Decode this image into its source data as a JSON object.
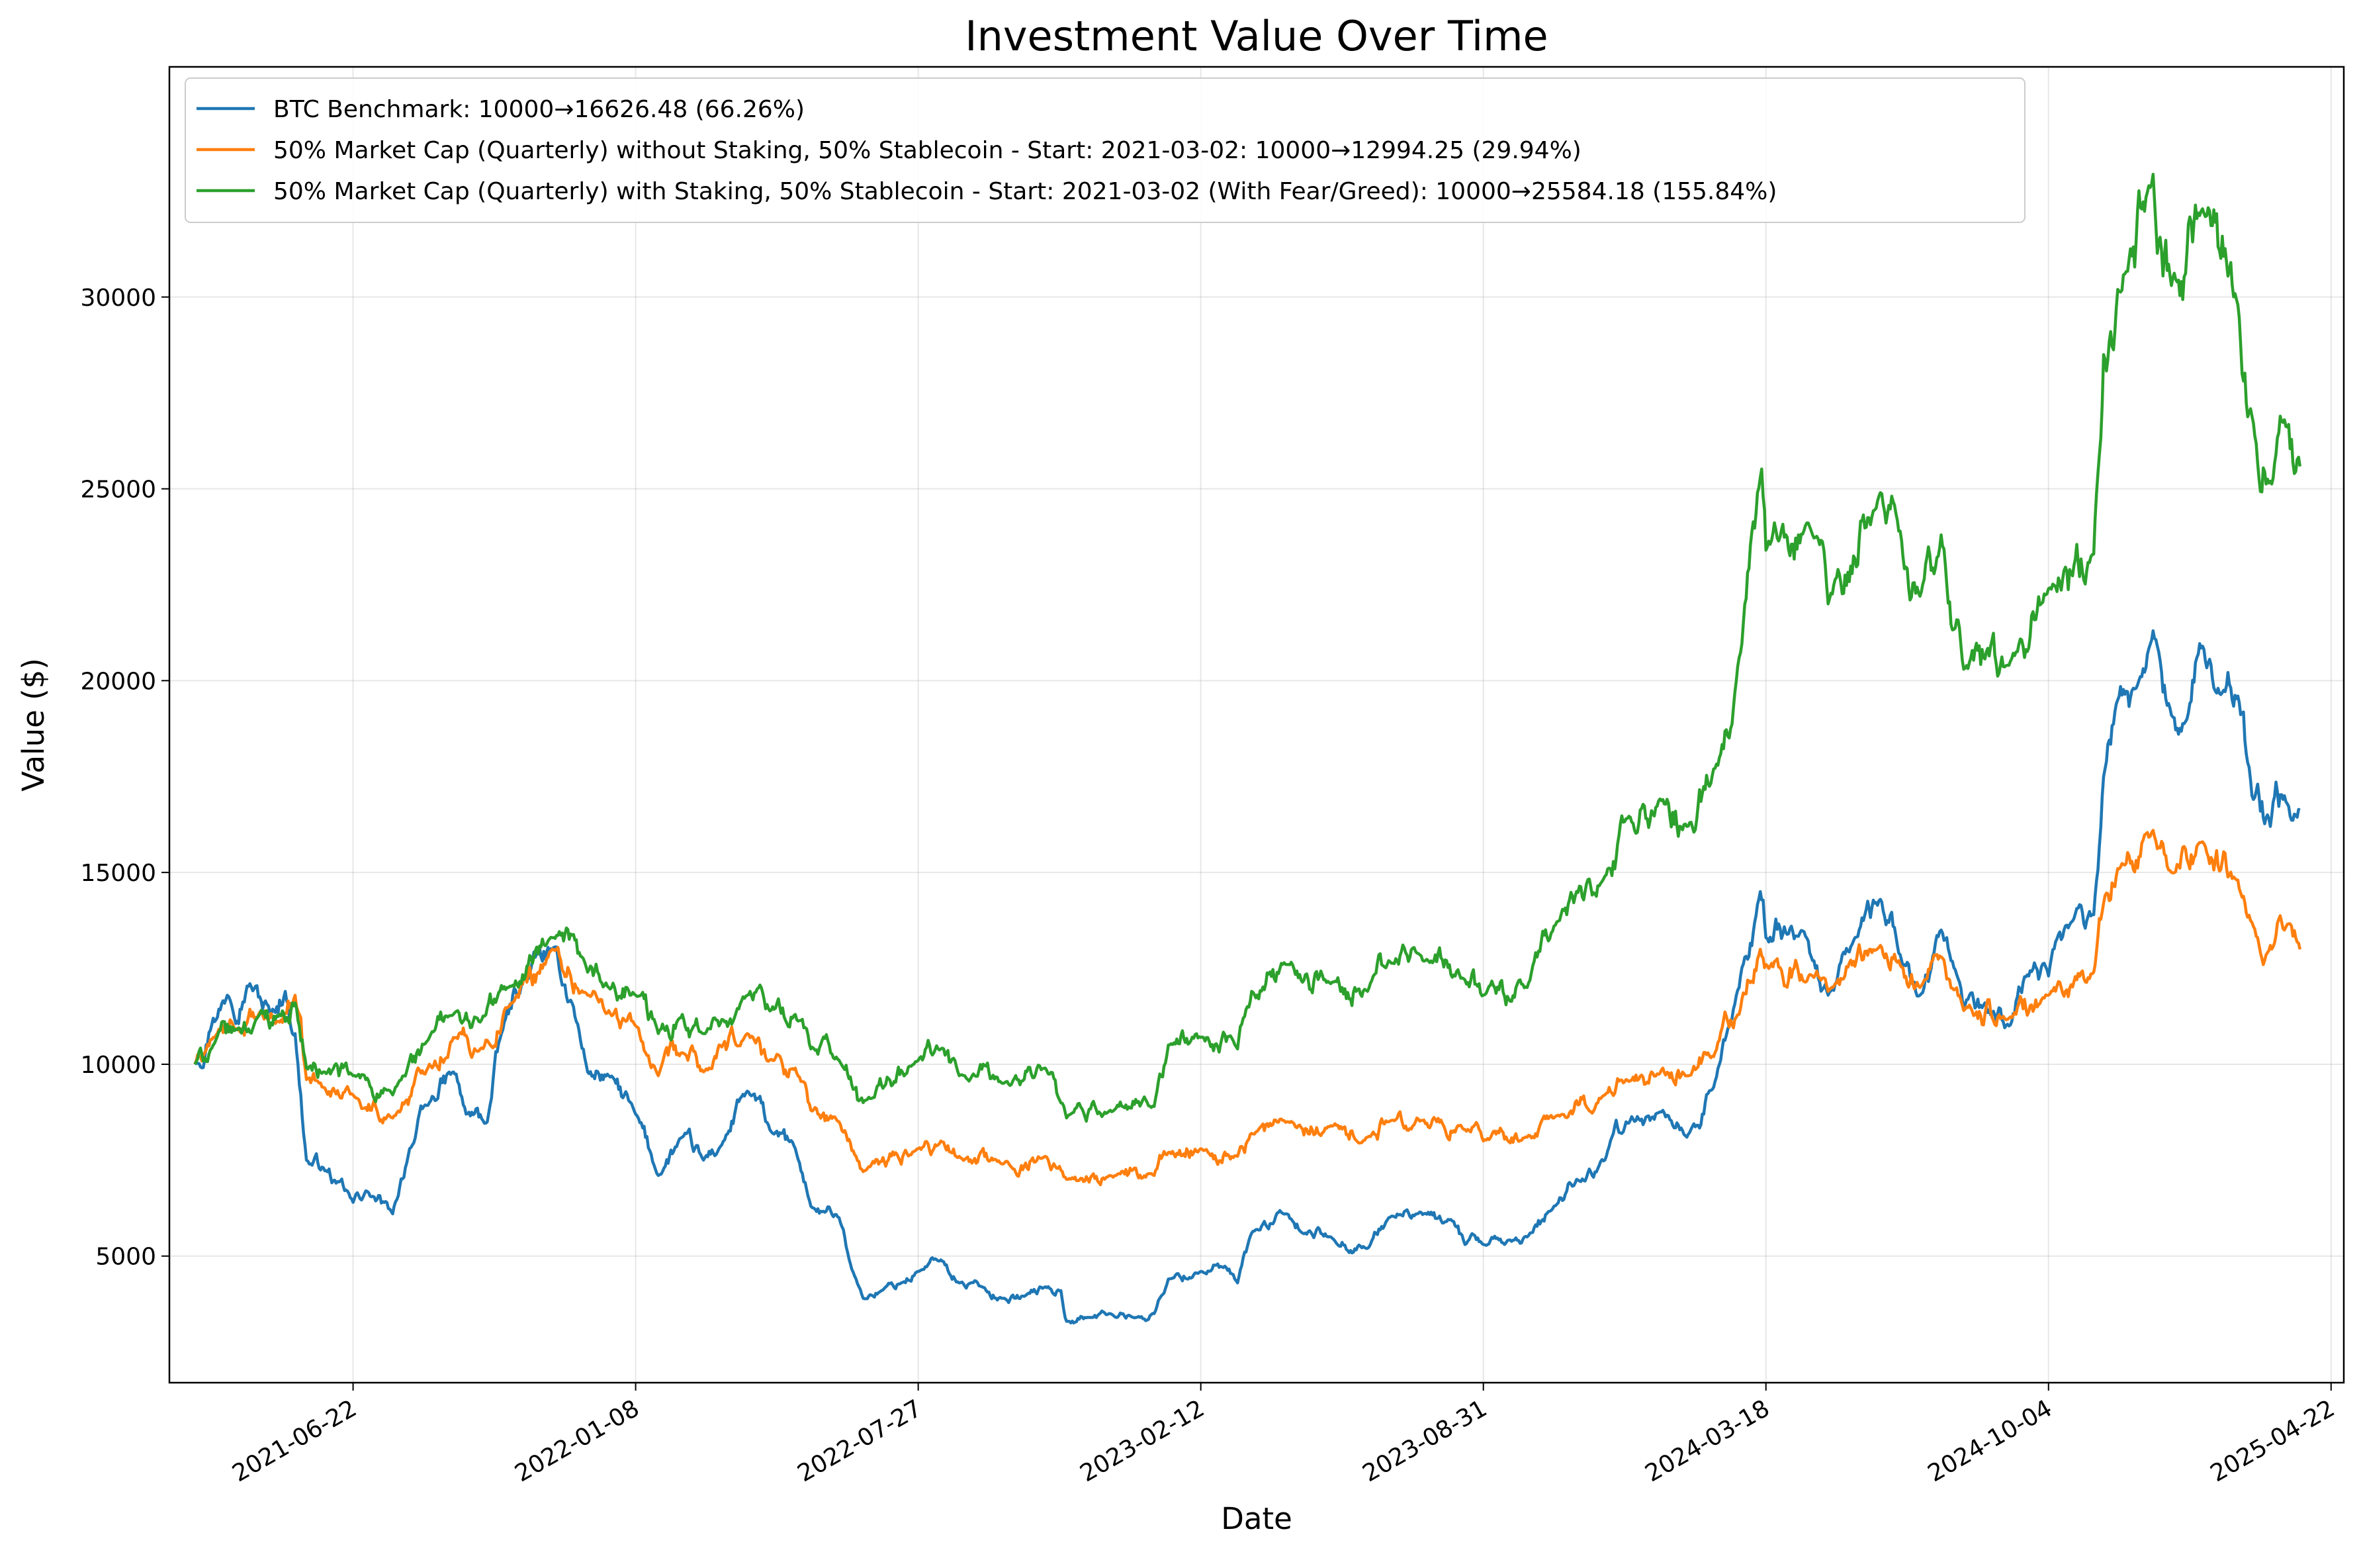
{
  "chart_data": {
    "type": "line",
    "title": "Investment Value Over Time",
    "xlabel": "Date",
    "ylabel": "Value ($)",
    "grid": true,
    "legend_position": "top-left",
    "xlim": [
      "2021-02-12",
      "2025-05-01"
    ],
    "ylim": [
      1700,
      36000
    ],
    "x_ticks": [
      "2021-06-22",
      "2022-01-08",
      "2022-07-27",
      "2023-02-12",
      "2023-08-31",
      "2024-03-18",
      "2024-10-04",
      "2025-04-22"
    ],
    "y_ticks": [
      5000,
      10000,
      15000,
      20000,
      25000,
      30000
    ],
    "y_tick_labels": [
      "5000",
      "10000",
      "15000",
      "20000",
      "25000",
      "30000"
    ],
    "series": [
      {
        "name": "BTC Benchmark: 10000→16626.48 (66.26%)",
        "color": "#1f77b4",
        "points": [
          [
            "2021-03-02",
            10000
          ],
          [
            "2021-03-15",
            11200
          ],
          [
            "2021-03-25",
            11800
          ],
          [
            "2021-04-10",
            12100
          ],
          [
            "2021-04-25",
            11300
          ],
          [
            "2021-05-05",
            11900
          ],
          [
            "2021-05-12",
            10800
          ],
          [
            "2021-05-20",
            7500
          ],
          [
            "2021-06-01",
            7300
          ],
          [
            "2021-06-10",
            6900
          ],
          [
            "2021-06-22",
            6400
          ],
          [
            "2021-07-01",
            6700
          ],
          [
            "2021-07-20",
            6100
          ],
          [
            "2021-08-01",
            7800
          ],
          [
            "2021-08-15",
            9000
          ],
          [
            "2021-09-01",
            9800
          ],
          [
            "2021-09-10",
            8700
          ],
          [
            "2021-09-25",
            8500
          ],
          [
            "2021-10-05",
            10800
          ],
          [
            "2021-10-20",
            12200
          ],
          [
            "2021-11-10",
            13000
          ],
          [
            "2021-11-25",
            11500
          ],
          [
            "2021-12-05",
            9800
          ],
          [
            "2021-12-20",
            9700
          ],
          [
            "2022-01-08",
            8700
          ],
          [
            "2022-01-24",
            7100
          ],
          [
            "2022-02-10",
            8100
          ],
          [
            "2022-02-25",
            7500
          ],
          [
            "2022-03-10",
            7900
          ],
          [
            "2022-03-28",
            9300
          ],
          [
            "2022-04-15",
            8200
          ],
          [
            "2022-05-01",
            7800
          ],
          [
            "2022-05-12",
            6300
          ],
          [
            "2022-06-01",
            6000
          ],
          [
            "2022-06-13",
            4400
          ],
          [
            "2022-06-18",
            3900
          ],
          [
            "2022-07-01",
            4100
          ],
          [
            "2022-07-15",
            4300
          ],
          [
            "2022-07-27",
            4600
          ],
          [
            "2022-08-12",
            4900
          ],
          [
            "2022-08-25",
            4300
          ],
          [
            "2022-09-10",
            4200
          ],
          [
            "2022-09-25",
            3900
          ],
          [
            "2022-10-10",
            3950
          ],
          [
            "2022-10-25",
            4200
          ],
          [
            "2022-11-05",
            4100
          ],
          [
            "2022-11-09",
            3300
          ],
          [
            "2022-11-25",
            3400
          ],
          [
            "2022-12-10",
            3500
          ],
          [
            "2022-12-28",
            3400
          ],
          [
            "2023-01-10",
            3500
          ],
          [
            "2023-01-20",
            4400
          ],
          [
            "2023-02-12",
            4600
          ],
          [
            "2023-02-28",
            4700
          ],
          [
            "2023-03-10",
            4300
          ],
          [
            "2023-03-20",
            5600
          ],
          [
            "2023-04-14",
            6100
          ],
          [
            "2023-04-25",
            5600
          ],
          [
            "2023-05-15",
            5500
          ],
          [
            "2023-06-10",
            5200
          ],
          [
            "2023-06-25",
            6000
          ],
          [
            "2023-07-15",
            6100
          ],
          [
            "2023-08-10",
            5900
          ],
          [
            "2023-08-18",
            5300
          ],
          [
            "2023-08-31",
            5300
          ],
          [
            "2023-09-15",
            5300
          ],
          [
            "2023-10-01",
            5500
          ],
          [
            "2023-10-20",
            6300
          ],
          [
            "2023-11-05",
            7000
          ],
          [
            "2023-11-25",
            7500
          ],
          [
            "2023-12-10",
            8500
          ],
          [
            "2024-01-05",
            8800
          ],
          [
            "2024-01-22",
            8100
          ],
          [
            "2024-02-10",
            9400
          ],
          [
            "2024-02-28",
            12000
          ],
          [
            "2024-03-14",
            14500
          ],
          [
            "2024-03-18",
            13300
          ],
          [
            "2024-04-05",
            13600
          ],
          [
            "2024-04-20",
            12700
          ],
          [
            "2024-05-01",
            11800
          ],
          [
            "2024-05-20",
            13300
          ],
          [
            "2024-06-07",
            14300
          ],
          [
            "2024-06-20",
            12900
          ],
          [
            "2024-07-05",
            11800
          ],
          [
            "2024-07-20",
            13500
          ],
          [
            "2024-08-05",
            11500
          ],
          [
            "2024-08-20",
            11600
          ],
          [
            "2024-09-06",
            11000
          ],
          [
            "2024-09-20",
            12300
          ],
          [
            "2024-10-04",
            12300
          ],
          [
            "2024-10-20",
            13700
          ],
          [
            "2024-11-05",
            13900
          ],
          [
            "2024-11-12",
            17500
          ],
          [
            "2024-11-22",
            19500
          ],
          [
            "2024-12-05",
            19800
          ],
          [
            "2024-12-17",
            21300
          ],
          [
            "2024-12-30",
            19100
          ],
          [
            "2025-01-10",
            19000
          ],
          [
            "2025-01-21",
            20900
          ],
          [
            "2025-02-01",
            19800
          ],
          [
            "2025-02-15",
            19600
          ],
          [
            "2025-02-25",
            17000
          ],
          [
            "2025-03-10",
            16200
          ],
          [
            "2025-03-20",
            17000
          ],
          [
            "2025-03-31",
            16626.48
          ]
        ]
      },
      {
        "name": "50% Market Cap (Quarterly) without Staking, 50% Stablecoin - Start: 2021-03-02: 10000→12994.25 (29.94%)",
        "color": "#ff7f0e",
        "points": [
          [
            "2021-03-02",
            10000
          ],
          [
            "2021-03-15",
            10700
          ],
          [
            "2021-04-01",
            10900
          ],
          [
            "2021-04-15",
            11200
          ],
          [
            "2021-05-01",
            11100
          ],
          [
            "2021-05-12",
            11800
          ],
          [
            "2021-05-20",
            9600
          ],
          [
            "2021-06-01",
            9400
          ],
          [
            "2021-06-22",
            9200
          ],
          [
            "2021-07-20",
            8600
          ],
          [
            "2021-08-15",
            10000
          ],
          [
            "2021-09-01",
            10700
          ],
          [
            "2021-09-20",
            10400
          ],
          [
            "2021-10-10",
            11500
          ],
          [
            "2021-11-10",
            13000
          ],
          [
            "2021-12-05",
            11800
          ],
          [
            "2021-12-20",
            11400
          ],
          [
            "2022-01-08",
            11000
          ],
          [
            "2022-01-24",
            9700
          ],
          [
            "2022-02-10",
            10300
          ],
          [
            "2022-02-25",
            9800
          ],
          [
            "2022-03-28",
            10800
          ],
          [
            "2022-04-15",
            10100
          ],
          [
            "2022-05-01",
            9900
          ],
          [
            "2022-05-12",
            8800
          ],
          [
            "2022-06-01",
            8500
          ],
          [
            "2022-06-13",
            7600
          ],
          [
            "2022-06-18",
            7200
          ],
          [
            "2022-07-27",
            7800
          ],
          [
            "2022-08-12",
            8000
          ],
          [
            "2022-08-25",
            7600
          ],
          [
            "2022-09-25",
            7400
          ],
          [
            "2022-10-25",
            7600
          ],
          [
            "2022-11-09",
            7000
          ],
          [
            "2022-12-10",
            7100
          ],
          [
            "2023-01-10",
            7100
          ],
          [
            "2023-01-20",
            7700
          ],
          [
            "2023-02-12",
            7800
          ],
          [
            "2023-03-10",
            7600
          ],
          [
            "2023-03-20",
            8200
          ],
          [
            "2023-04-14",
            8500
          ],
          [
            "2023-05-15",
            8400
          ],
          [
            "2023-06-10",
            8100
          ],
          [
            "2023-06-25",
            8500
          ],
          [
            "2023-07-15",
            8600
          ],
          [
            "2023-08-18",
            8300
          ],
          [
            "2023-08-31",
            8000
          ],
          [
            "2023-10-01",
            8100
          ],
          [
            "2023-10-20",
            8600
          ],
          [
            "2023-11-25",
            9200
          ],
          [
            "2023-12-10",
            9600
          ],
          [
            "2024-01-05",
            9900
          ],
          [
            "2024-01-22",
            9700
          ],
          [
            "2024-02-10",
            10200
          ],
          [
            "2024-02-28",
            11300
          ],
          [
            "2024-03-14",
            13000
          ],
          [
            "2024-03-18",
            12600
          ],
          [
            "2024-04-20",
            12300
          ],
          [
            "2024-05-01",
            11900
          ],
          [
            "2024-06-07",
            13100
          ],
          [
            "2024-06-20",
            12700
          ],
          [
            "2024-07-05",
            12000
          ],
          [
            "2024-07-20",
            12800
          ],
          [
            "2024-08-05",
            11400
          ],
          [
            "2024-09-06",
            11200
          ],
          [
            "2024-10-04",
            11800
          ],
          [
            "2024-11-05",
            12400
          ],
          [
            "2024-11-12",
            14200
          ],
          [
            "2024-11-22",
            15100
          ],
          [
            "2024-12-17",
            16100
          ],
          [
            "2024-12-30",
            15000
          ],
          [
            "2025-01-21",
            15800
          ],
          [
            "2025-02-15",
            14800
          ],
          [
            "2025-02-25",
            13700
          ],
          [
            "2025-03-10",
            13100
          ],
          [
            "2025-03-20",
            13500
          ],
          [
            "2025-03-31",
            12994.25
          ]
        ]
      },
      {
        "name": "50% Market Cap (Quarterly) with Staking, 50% Stablecoin - Start: 2021-03-02 (With Fear/Greed): 10000→25584.18 (155.84%)",
        "color": "#2ca02c",
        "points": [
          [
            "2021-03-02",
            10000
          ],
          [
            "2021-03-15",
            10500
          ],
          [
            "2021-04-01",
            10900
          ],
          [
            "2021-04-15",
            11200
          ],
          [
            "2021-05-01",
            11300
          ],
          [
            "2021-05-12",
            11600
          ],
          [
            "2021-05-20",
            9900
          ],
          [
            "2021-06-01",
            9800
          ],
          [
            "2021-06-22",
            9700
          ],
          [
            "2021-07-20",
            9200
          ],
          [
            "2021-08-15",
            10700
          ],
          [
            "2021-09-01",
            11300
          ],
          [
            "2021-09-20",
            11100
          ],
          [
            "2021-10-10",
            12000
          ],
          [
            "2021-11-10",
            13300
          ],
          [
            "2021-12-05",
            12400
          ],
          [
            "2021-12-20",
            12000
          ],
          [
            "2022-01-08",
            11800
          ],
          [
            "2022-01-24",
            10800
          ],
          [
            "2022-02-10",
            11300
          ],
          [
            "2022-02-25",
            10800
          ],
          [
            "2022-03-28",
            11800
          ],
          [
            "2022-04-15",
            11500
          ],
          [
            "2022-05-01",
            11300
          ],
          [
            "2022-05-12",
            10400
          ],
          [
            "2022-06-01",
            10100
          ],
          [
            "2022-06-13",
            9400
          ],
          [
            "2022-06-18",
            9000
          ],
          [
            "2022-07-27",
            10100
          ],
          [
            "2022-08-12",
            10400
          ],
          [
            "2022-08-25",
            9700
          ],
          [
            "2022-09-25",
            9500
          ],
          [
            "2022-10-25",
            9900
          ],
          [
            "2022-11-09",
            8600
          ],
          [
            "2022-12-10",
            8800
          ],
          [
            "2023-01-10",
            8900
          ],
          [
            "2023-01-20",
            10500
          ],
          [
            "2023-02-12",
            10700
          ],
          [
            "2023-03-10",
            10400
          ],
          [
            "2023-03-20",
            11900
          ],
          [
            "2023-04-14",
            12600
          ],
          [
            "2023-05-15",
            12100
          ],
          [
            "2023-06-10",
            11900
          ],
          [
            "2023-06-25",
            12700
          ],
          [
            "2023-07-15",
            12900
          ],
          [
            "2023-08-18",
            12200
          ],
          [
            "2023-08-31",
            11800
          ],
          [
            "2023-10-01",
            12000
          ],
          [
            "2023-10-20",
            13600
          ],
          [
            "2023-11-25",
            14900
          ],
          [
            "2023-12-10",
            16400
          ],
          [
            "2024-01-05",
            16900
          ],
          [
            "2024-01-22",
            16200
          ],
          [
            "2024-02-10",
            17700
          ],
          [
            "2024-02-28",
            20600
          ],
          [
            "2024-03-14",
            25300
          ],
          [
            "2024-03-18",
            23400
          ],
          [
            "2024-04-20",
            23800
          ],
          [
            "2024-05-01",
            22000
          ],
          [
            "2024-06-07",
            24900
          ],
          [
            "2024-06-20",
            23900
          ],
          [
            "2024-07-05",
            22200
          ],
          [
            "2024-07-20",
            23800
          ],
          [
            "2024-08-05",
            20300
          ],
          [
            "2024-09-06",
            20400
          ],
          [
            "2024-10-04",
            22400
          ],
          [
            "2024-11-05",
            23300
          ],
          [
            "2024-11-12",
            28500
          ],
          [
            "2024-11-22",
            30200
          ],
          [
            "2024-12-17",
            33200
          ],
          [
            "2024-12-30",
            30300
          ],
          [
            "2025-01-21",
            32300
          ],
          [
            "2025-02-15",
            29800
          ],
          [
            "2025-02-25",
            26900
          ],
          [
            "2025-03-10",
            25200
          ],
          [
            "2025-03-20",
            26800
          ],
          [
            "2025-03-31",
            25584.18
          ]
        ]
      }
    ]
  }
}
